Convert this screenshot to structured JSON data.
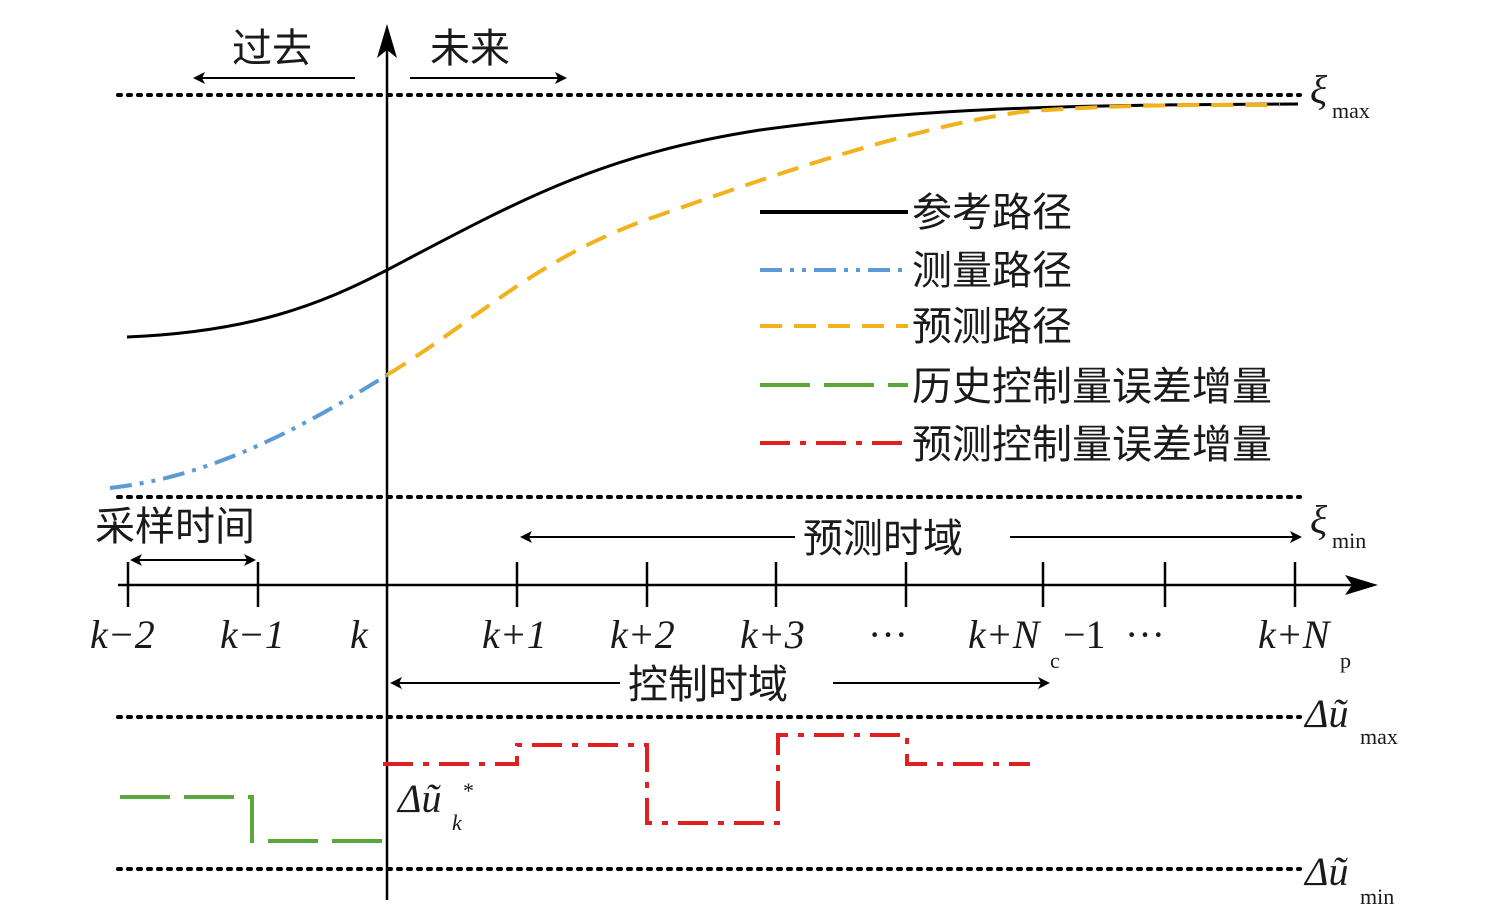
{
  "diagram": {
    "past_label": "过去",
    "future_label": "未来",
    "xi_max_label": "ξ",
    "xi_max_sub": "max",
    "xi_min_label": "ξ",
    "xi_min_sub": "min",
    "sampling_time_label": "采样时间",
    "prediction_horizon_label": "预测时域",
    "control_horizon_label": "控制时域",
    "du_max_label": "Δũ",
    "du_max_sub": "max",
    "du_min_label": "Δũ",
    "du_min_sub": "min",
    "du_k_label": "Δũ",
    "du_k_sub": "k",
    "du_k_sup": "*",
    "ticks": {
      "t0": "k−2",
      "t1": "k−1",
      "t2": "k",
      "t3": "k+1",
      "t4": "k+2",
      "t5": "k+3",
      "t6": "···",
      "t7_main": "k+N",
      "t7_sub": "c",
      "t7_tail": "−1",
      "t8": "···",
      "t9_main": "k+N",
      "t9_sub": "p"
    },
    "legend": [
      {
        "label": "参考路径",
        "color": "#000000",
        "style": "solid"
      },
      {
        "label": "测量路径",
        "color": "#5b9bd5",
        "style": "dash-dot-dot"
      },
      {
        "label": "预测路径",
        "color": "#f2b21c",
        "style": "dashed"
      },
      {
        "label": "历史控制量误差增量",
        "color": "#5aa83a",
        "style": "long-dash"
      },
      {
        "label": "预测控制量误差增量",
        "color": "#e02020",
        "style": "dash-dot"
      }
    ]
  }
}
